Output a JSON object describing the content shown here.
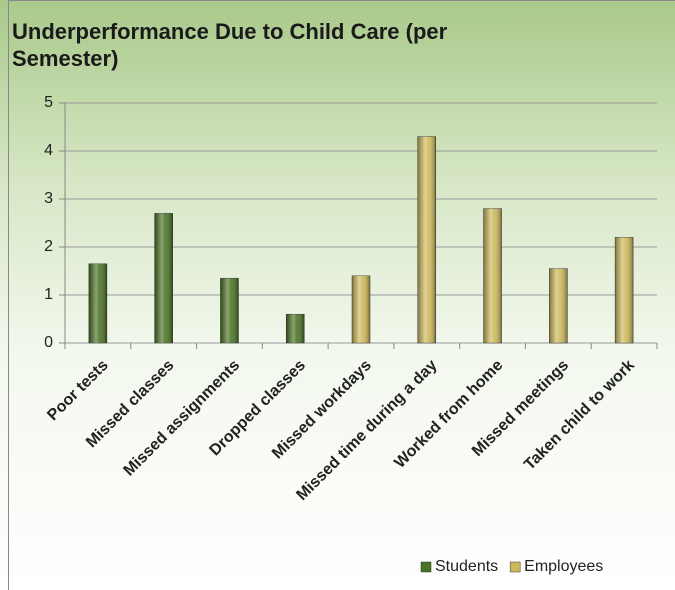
{
  "chart_data": {
    "type": "bar",
    "title": "Underperformance Due to Child Care (per Semester)",
    "categories": [
      "Poor tests",
      "Missed classes",
      "Missed assignments",
      "Dropped classes",
      "Missed workdays",
      "Missed time during a day",
      "Worked from home",
      "Missed meetings",
      "Taken child to work"
    ],
    "series": [
      {
        "name": "Students",
        "color": "#4a7324",
        "values": [
          1.65,
          2.7,
          1.35,
          0.6,
          null,
          null,
          null,
          null,
          null
        ]
      },
      {
        "name": "Employees",
        "color": "#cdb95c",
        "values": [
          null,
          null,
          null,
          null,
          1.4,
          4.3,
          2.8,
          1.55,
          2.2
        ]
      }
    ],
    "ylim": [
      0,
      5
    ],
    "yticks": [
      0,
      1,
      2,
      3,
      4,
      5
    ],
    "grid": true,
    "legend": "bottom-right"
  }
}
